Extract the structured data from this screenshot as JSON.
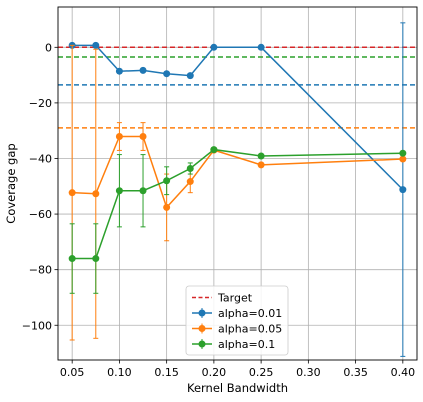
{
  "chart_data": {
    "type": "line",
    "xlabel": "Kernel Bandwidth",
    "ylabel": "Coverage gap",
    "xlim": [
      0.035,
      0.415
    ],
    "ylim": [
      -112.5,
      14.5
    ],
    "xticks": [
      0.05,
      0.1,
      0.15,
      0.2,
      0.25,
      0.3,
      0.35,
      0.4
    ],
    "xtick_labels": [
      "0.05",
      "0.10",
      "0.15",
      "0.20",
      "0.25",
      "0.30",
      "0.35",
      "0.40"
    ],
    "yticks": [
      0,
      -20,
      -40,
      -60,
      -80,
      -100
    ],
    "ytick_labels": [
      "0",
      "−20",
      "−40",
      "−60",
      "−80",
      "−100"
    ],
    "grid": true,
    "legend_position": "lower-center",
    "target_line": {
      "name": "Target",
      "y": 0,
      "color": "#d62728"
    },
    "x": [
      0.05,
      0.075,
      0.1,
      0.125,
      0.15,
      0.175,
      0.2,
      0.25,
      0.4
    ],
    "series": [
      {
        "name": "alpha=0.01",
        "color": "#1f77b4",
        "values": [
          0.7,
          0.7,
          -8.6,
          -8.3,
          -9.5,
          -10.2,
          0,
          0,
          -51.2
        ],
        "err": [
          null,
          null,
          null,
          null,
          null,
          null,
          null,
          null,
          60
        ],
        "mean_line": -13.5
      },
      {
        "name": "alpha=0.05",
        "color": "#ff7f0e",
        "values": [
          -52.3,
          -52.7,
          -32.1,
          -32.1,
          -57.6,
          -48.3,
          -37.0,
          -42.3,
          -40.2
        ],
        "err": [
          53,
          52,
          5,
          5,
          12,
          4,
          null,
          null,
          null
        ],
        "mean_line": -29
      },
      {
        "name": "alpha=0.1",
        "color": "#2ca02c",
        "values": [
          -76.0,
          -76.0,
          -51.6,
          -51.6,
          -48.0,
          -43.6,
          -36.8,
          -39.1,
          -38.1
        ],
        "err": [
          12.5,
          12.5,
          13,
          13,
          5,
          2,
          null,
          null,
          null
        ],
        "mean_line": -3.5
      }
    ]
  }
}
